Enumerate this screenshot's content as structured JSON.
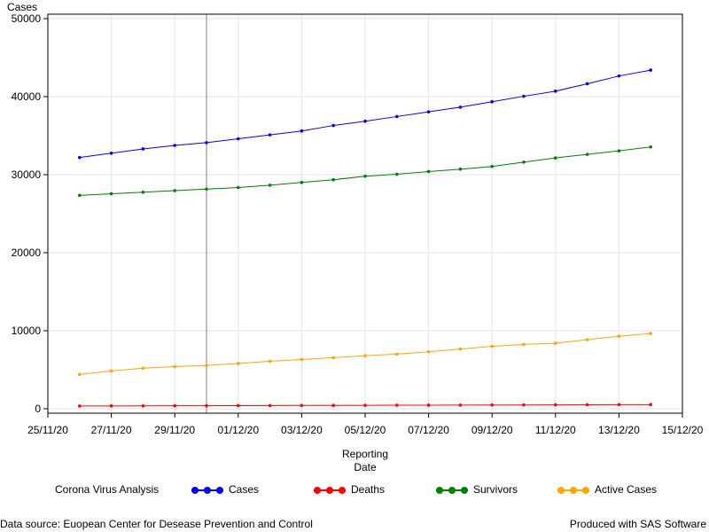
{
  "chart_data": {
    "type": "line",
    "title": "",
    "ylabel": "Cases",
    "xlabel_lines": [
      "Reporting",
      "Date"
    ],
    "ylim": [
      0,
      50000
    ],
    "yticks": [
      0,
      10000,
      20000,
      30000,
      40000,
      50000
    ],
    "ytick_labels": [
      "0",
      "10000",
      "20000",
      "30000",
      "40000",
      "50000"
    ],
    "xlim": [
      "2020-11-25",
      "2020-12-15"
    ],
    "xticks": [
      "2020-11-25",
      "2020-11-27",
      "2020-11-29",
      "2020-12-01",
      "2020-12-03",
      "2020-12-05",
      "2020-12-07",
      "2020-12-09",
      "2020-12-11",
      "2020-12-13",
      "2020-12-15"
    ],
    "xtick_labels": [
      "25/11/20",
      "27/11/20",
      "29/11/20",
      "01/12/20",
      "03/12/20",
      "05/12/20",
      "07/12/20",
      "09/12/20",
      "11/12/20",
      "13/12/20",
      "15/12/20"
    ],
    "reference_line_x": "2020-11-30",
    "grid": true,
    "x": [
      "2020-11-26",
      "2020-11-27",
      "2020-11-28",
      "2020-11-29",
      "2020-11-30",
      "2020-12-01",
      "2020-12-02",
      "2020-12-03",
      "2020-12-04",
      "2020-12-05",
      "2020-12-06",
      "2020-12-07",
      "2020-12-08",
      "2020-12-09",
      "2020-12-10",
      "2020-12-11",
      "2020-12-12",
      "2020-12-13",
      "2020-12-14"
    ],
    "series": [
      {
        "name": "Cases",
        "color": "#0000ff",
        "values": [
          32200,
          32750,
          33300,
          33750,
          34100,
          34600,
          35100,
          35600,
          36300,
          36850,
          37450,
          38050,
          38650,
          39350,
          40050,
          40700,
          41650,
          42650,
          43400
        ]
      },
      {
        "name": "Deaths",
        "color": "#ff0000",
        "values": [
          350,
          360,
          370,
          380,
          390,
          400,
          410,
          420,
          430,
          440,
          450,
          460,
          470,
          480,
          490,
          500,
          510,
          520,
          530
        ]
      },
      {
        "name": "Survivors",
        "color": "#008000",
        "values": [
          27350,
          27550,
          27750,
          27950,
          28150,
          28350,
          28650,
          29000,
          29350,
          29800,
          30050,
          30400,
          30700,
          31050,
          31600,
          32150,
          32600,
          33050,
          33550
        ]
      },
      {
        "name": "Active Cases",
        "color": "#ffa500",
        "values": [
          4400,
          4850,
          5200,
          5400,
          5550,
          5800,
          6100,
          6300,
          6550,
          6800,
          7000,
          7300,
          7650,
          8000,
          8250,
          8400,
          8850,
          9300,
          9650
        ]
      }
    ]
  },
  "legend": {
    "title": "Corona Virus Analysis",
    "items": [
      {
        "label": "Cases",
        "color": "#0000ff"
      },
      {
        "label": "Deaths",
        "color": "#ff0000"
      },
      {
        "label": "Survivors",
        "color": "#008000"
      },
      {
        "label": "Active Cases",
        "color": "#ffa500"
      }
    ]
  },
  "footer": {
    "source": "Data source: Euopean Center for Desease Prevention and Control",
    "producer": "Produced with SAS Software"
  }
}
